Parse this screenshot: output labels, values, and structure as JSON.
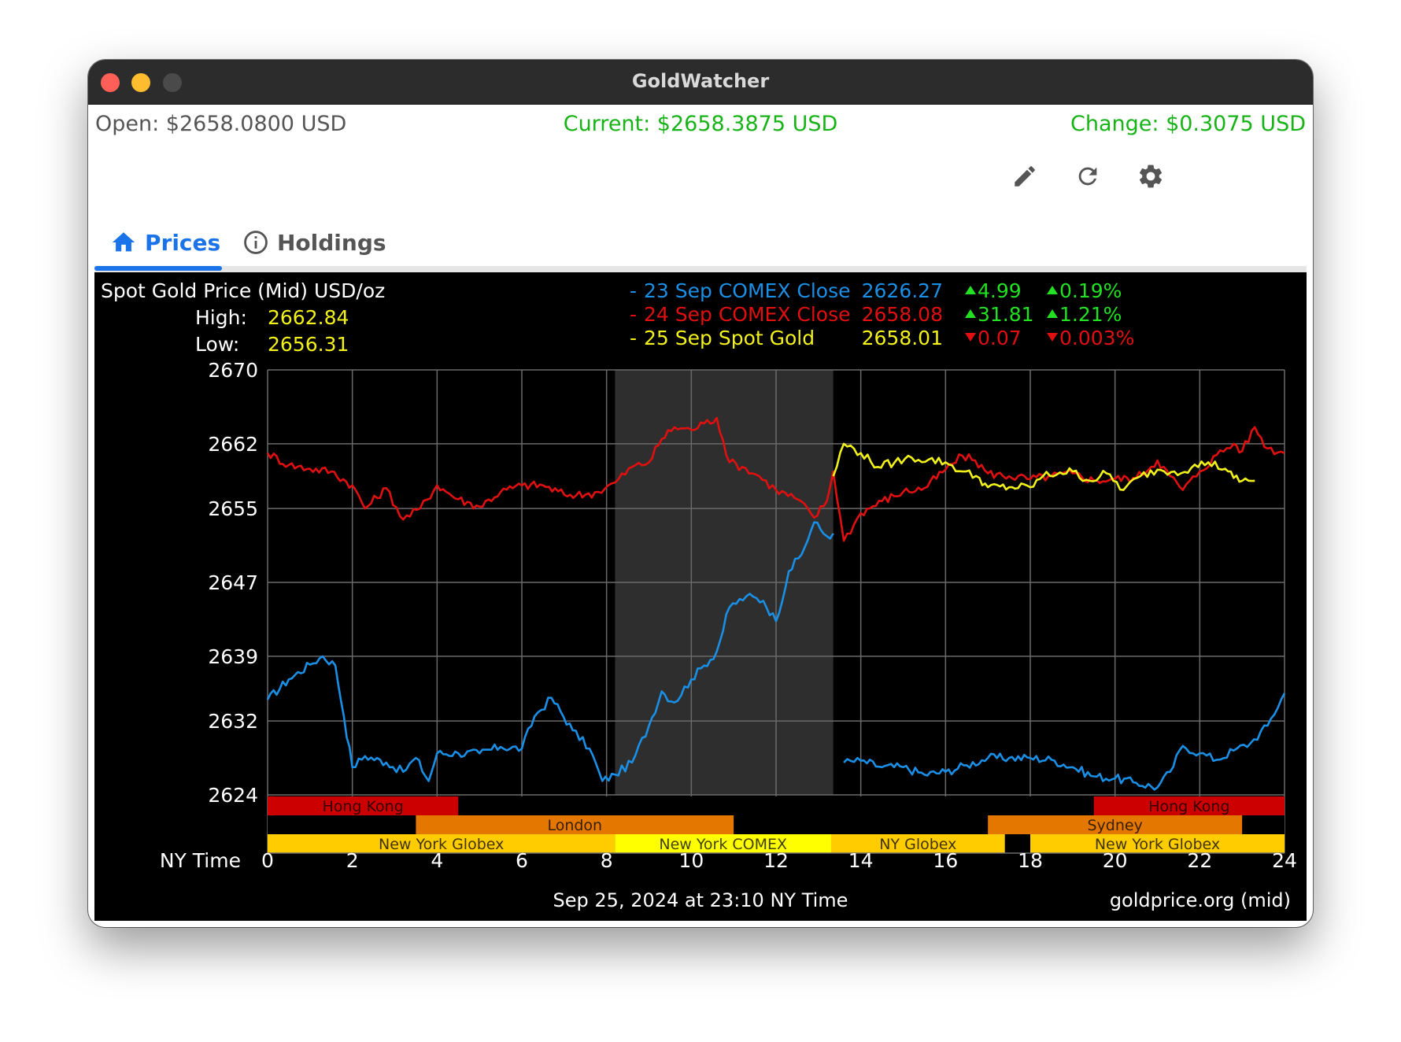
{
  "window": {
    "title": "GoldWatcher"
  },
  "stats": {
    "open": "Open: $2658.0800 USD",
    "current": "Current: $2658.3875 USD",
    "change": "Change: $0.3075 USD"
  },
  "toolbar": {
    "edit_icon": "pencil-icon",
    "refresh_icon": "refresh-icon",
    "settings_icon": "gear-icon"
  },
  "tabs": [
    {
      "label": "Prices",
      "icon": "home-icon",
      "selected": true
    },
    {
      "label": "Holdings",
      "icon": "info-icon",
      "selected": false
    }
  ],
  "colors": {
    "accent": "#1a73e8",
    "positive": "#17b317",
    "series_23": "#1a8fe6",
    "series_24": "#e01010",
    "series_25": "#f2f21a"
  },
  "chart_data": {
    "type": "line",
    "title": "Spot Gold Price (Mid) USD/oz",
    "high_label": "High:",
    "high_value": "2662.84",
    "low_label": "Low:",
    "low_value": "2656.31",
    "xlabel": "NY Time",
    "x_ticks": [
      "0",
      "2",
      "4",
      "6",
      "8",
      "10",
      "12",
      "14",
      "16",
      "18",
      "20",
      "22",
      "24"
    ],
    "y_ticks": [
      "2670",
      "2662",
      "2655",
      "2647",
      "2639",
      "2632",
      "2624"
    ],
    "xlim": [
      0,
      24
    ],
    "ylim": [
      2624,
      2670
    ],
    "grid": true,
    "footer": "Sep 25, 2024 at 23:10 NY Time",
    "source": "goldprice.org (mid)",
    "highlight_hours": [
      8.2,
      13.35
    ],
    "legend": [
      {
        "marker": "-",
        "name": "23 Sep COMEX Close",
        "value": "2626.27",
        "change": "4.99",
        "pct": "0.19%",
        "direction": "up"
      },
      {
        "marker": "-",
        "name": "24 Sep COMEX Close",
        "value": "2658.08",
        "change": "31.81",
        "pct": "1.21%",
        "direction": "up"
      },
      {
        "marker": "-",
        "name": "25 Sep Spot Gold",
        "value": "2658.01",
        "change": "0.07",
        "pct": "0.003%",
        "direction": "down"
      }
    ],
    "sessions": [
      {
        "row": 0,
        "label": "Hong Kong",
        "start": 0,
        "end": 4.5,
        "color": "#cc0000"
      },
      {
        "row": 0,
        "label": "Hong Kong",
        "start": 19.5,
        "end": 24,
        "color": "#cc0000"
      },
      {
        "row": 1,
        "label": "London",
        "start": 3.5,
        "end": 11.0,
        "color": "#e37700"
      },
      {
        "row": 1,
        "label": "Sydney",
        "start": 17.0,
        "end": 23.0,
        "color": "#e37700"
      },
      {
        "row": 2,
        "label": "New York Globex",
        "start": 0,
        "end": 8.2,
        "color": "#ffcc00"
      },
      {
        "row": 2,
        "label": "New York COMEX",
        "start": 8.2,
        "end": 13.3,
        "color": "#ffff00"
      },
      {
        "row": 2,
        "label": "NY Globex",
        "start": 13.3,
        "end": 17.4,
        "color": "#ffcc00"
      },
      {
        "row": 2,
        "label": "New York Globex",
        "start": 18.0,
        "end": 24,
        "color": "#ffcc00"
      }
    ],
    "series": [
      {
        "name": "23 Sep COMEX Close",
        "color": "#1a8fe6",
        "x": [
          0,
          0.5,
          1.0,
          1.3,
          1.6,
          1.8,
          2.0,
          2.3,
          2.8,
          3.2,
          3.5,
          3.8,
          4.0,
          4.5,
          5.0,
          5.5,
          6.0,
          6.3,
          6.7,
          7.2,
          7.6,
          7.9,
          8.2,
          8.6,
          9.0,
          9.3,
          9.6,
          10.0,
          10.3,
          10.6,
          10.9,
          11.3,
          11.7,
          12.0,
          12.3,
          12.6,
          12.9,
          13.2,
          13.35,
          null,
          13.6,
          14.0,
          14.5,
          15.0,
          15.5,
          16.0,
          16.5,
          17.0,
          17.5,
          18.0,
          18.5,
          19.0,
          19.5,
          20.0,
          20.5,
          21.0,
          21.3,
          21.6,
          22.0,
          22.4,
          22.8,
          23.2,
          23.6,
          24.0
        ],
        "y": [
          2634.3,
          2636.5,
          2638.1,
          2639.0,
          2638.0,
          2632.5,
          2627.0,
          2628.2,
          2627.5,
          2626.5,
          2628.0,
          2625.5,
          2628.5,
          2628.5,
          2628.5,
          2629.2,
          2629.0,
          2632.5,
          2634.5,
          2631.0,
          2629.0,
          2625.5,
          2626.2,
          2627.5,
          2631.5,
          2635.2,
          2634.0,
          2636.5,
          2638.0,
          2639.5,
          2644.3,
          2645.5,
          2645.0,
          2642.8,
          2648.2,
          2650.0,
          2653.5,
          2652.0,
          2652.3,
          null,
          2627.5,
          2627.7,
          2627.0,
          2627.0,
          2626.2,
          2626.5,
          2627.2,
          2628.0,
          2628.0,
          2628.0,
          2627.8,
          2627.0,
          2626.0,
          2625.8,
          2625.3,
          2624.8,
          2626.5,
          2629.3,
          2628.5,
          2627.8,
          2628.8,
          2629.6,
          2631.5,
          2635.0
        ]
      },
      {
        "name": "24 Sep COMEX Close",
        "color": "#e01010",
        "x": [
          0,
          0.5,
          1.0,
          1.5,
          2.0,
          2.3,
          2.8,
          3.2,
          3.6,
          4.0,
          4.5,
          5.0,
          5.5,
          6.0,
          6.5,
          7.0,
          7.5,
          7.8,
          8.2,
          8.6,
          9.0,
          9.3,
          9.6,
          10.0,
          10.3,
          10.6,
          10.9,
          11.2,
          11.6,
          12.0,
          12.5,
          12.9,
          13.2,
          13.35,
          13.6,
          14.0,
          14.5,
          15.0,
          15.5,
          16.0,
          16.4,
          16.7,
          17.0,
          17.5,
          18.0,
          18.5,
          19.0,
          19.5,
          20.0,
          20.5,
          21.0,
          21.3,
          21.6,
          22.0,
          22.4,
          22.8,
          23.0,
          23.3,
          23.6,
          24.0
        ],
        "y": [
          2661.0,
          2659.7,
          2659.3,
          2659.0,
          2657.5,
          2655.0,
          2657.2,
          2653.8,
          2655.0,
          2657.5,
          2656.0,
          2655.2,
          2656.8,
          2657.5,
          2657.5,
          2656.5,
          2656.5,
          2656.8,
          2657.8,
          2659.5,
          2660.0,
          2662.5,
          2663.8,
          2663.5,
          2664.2,
          2664.8,
          2660.0,
          2659.5,
          2658.5,
          2657.0,
          2656.0,
          2654.0,
          2655.8,
          2659.0,
          2651.5,
          2654.5,
          2655.8,
          2656.8,
          2657.2,
          2659.2,
          2660.7,
          2660.2,
          2658.8,
          2658.5,
          2658.2,
          2658.5,
          2658.8,
          2658.0,
          2658.2,
          2658.3,
          2660.2,
          2658.5,
          2657.0,
          2659.0,
          2660.8,
          2662.0,
          2661.2,
          2663.8,
          2661.5,
          2661.0
        ]
      },
      {
        "name": "25 Sep Spot Gold",
        "color": "#f2f21a",
        "x": [
          13.35,
          13.6,
          14.0,
          14.4,
          14.8,
          15.2,
          15.6,
          16.0,
          16.4,
          16.8,
          17.0,
          17.5,
          18.0,
          18.3,
          18.7,
          19.0,
          19.4,
          19.8,
          20.2,
          20.6,
          21.0,
          21.4,
          21.8,
          22.2,
          22.6,
          22.8,
          23.0,
          23.3
        ],
        "y": [
          2658.5,
          2662.0,
          2661.0,
          2659.5,
          2660.0,
          2660.5,
          2660.3,
          2660.0,
          2659.0,
          2658.3,
          2657.3,
          2657.3,
          2657.3,
          2658.5,
          2658.9,
          2659.0,
          2658.0,
          2658.8,
          2657.0,
          2658.5,
          2659.2,
          2659.0,
          2659.4,
          2660.0,
          2659.3,
          2658.3,
          2658.0,
          2658.0
        ]
      }
    ]
  }
}
